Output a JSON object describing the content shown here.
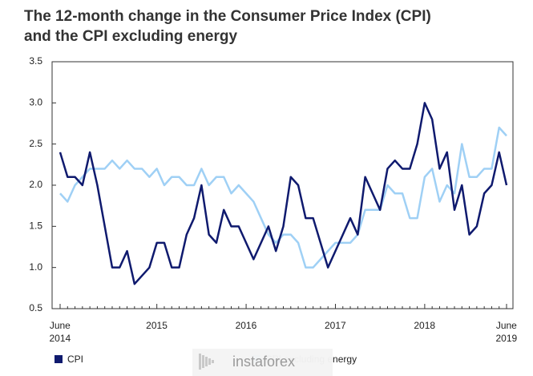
{
  "chart_data": {
    "type": "line",
    "title": "The 12-month change in the Consumer Price Index (CPI)\nand the CPI excluding energy",
    "categories": [
      "June\n2014",
      null,
      null,
      null,
      null,
      null,
      null,
      null,
      null,
      null,
      null,
      null,
      null,
      "2015",
      null,
      null,
      null,
      null,
      null,
      null,
      null,
      null,
      null,
      null,
      null,
      "2016",
      null,
      null,
      null,
      null,
      null,
      null,
      null,
      null,
      null,
      null,
      null,
      "2017",
      null,
      null,
      null,
      null,
      null,
      null,
      null,
      null,
      null,
      null,
      null,
      "2018",
      null,
      null,
      null,
      null,
      null,
      null,
      null,
      null,
      null,
      null,
      "June\n2019"
    ],
    "series": [
      {
        "name": "CPI",
        "color": "#0f1a6e",
        "values": [
          2.4,
          2.1,
          2.1,
          2.0,
          2.4,
          2.0,
          1.5,
          1.0,
          1.0,
          1.2,
          0.8,
          0.9,
          1.0,
          1.3,
          1.3,
          1.0,
          1.0,
          1.4,
          1.6,
          2.0,
          1.4,
          1.3,
          1.7,
          1.5,
          1.5,
          1.3,
          1.1,
          1.3,
          1.5,
          1.2,
          1.5,
          2.1,
          2.0,
          1.6,
          1.6,
          1.3,
          1.0,
          1.2,
          1.4,
          1.6,
          1.4,
          2.1,
          1.9,
          1.7,
          2.2,
          2.3,
          2.2,
          2.2,
          2.5,
          3.0,
          2.8,
          2.2,
          2.4,
          1.7,
          2.0,
          1.4,
          1.5,
          1.9,
          2.0,
          2.4,
          2.0
        ]
      },
      {
        "name": "CPI excluding energy",
        "color": "#9fd0f5",
        "values": [
          1.9,
          1.8,
          2.0,
          2.1,
          2.2,
          2.2,
          2.2,
          2.3,
          2.2,
          2.3,
          2.2,
          2.2,
          2.1,
          2.2,
          2.0,
          2.1,
          2.1,
          2.0,
          2.0,
          2.2,
          2.0,
          2.1,
          2.1,
          1.9,
          2.0,
          1.9,
          1.8,
          1.6,
          1.4,
          1.3,
          1.4,
          1.4,
          1.3,
          1.0,
          1.0,
          1.1,
          1.2,
          1.3,
          1.3,
          1.3,
          1.4,
          1.7,
          1.7,
          1.7,
          2.0,
          1.9,
          1.9,
          1.6,
          1.6,
          2.1,
          2.2,
          1.8,
          2.0,
          1.9,
          2.5,
          2.1,
          2.1,
          2.2,
          2.2,
          2.7,
          2.6
        ]
      }
    ],
    "ylim": [
      0.5,
      3.5
    ],
    "yticks": [
      0.5,
      {
        "value": 1,
        "label": "1.0"
      },
      1.5,
      {
        "value": 2,
        "label": "2.0"
      },
      2.5,
      {
        "value": 3,
        "label": "3.0"
      },
      3.5
    ],
    "grid": false,
    "legend": "bottom",
    "watermark": "instaforex"
  }
}
